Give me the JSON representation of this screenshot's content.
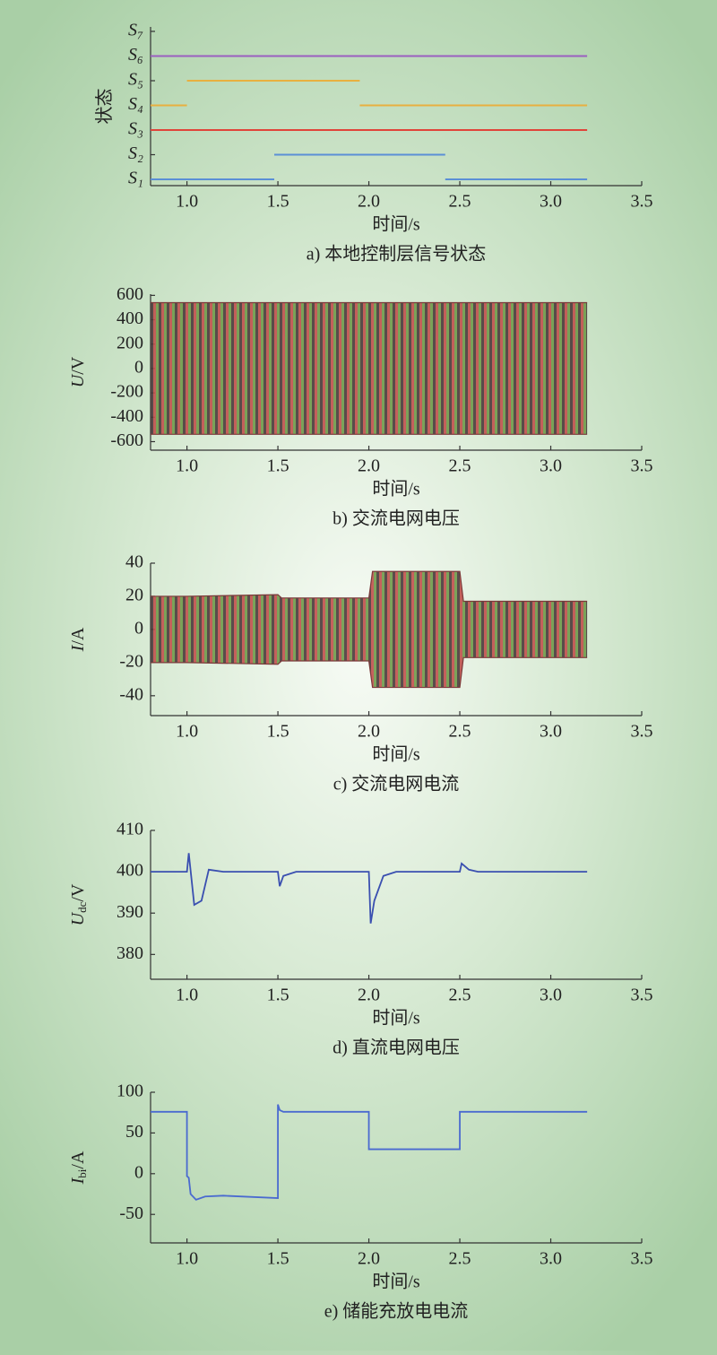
{
  "chart_data": [
    {
      "type": "state",
      "categories": [
        "S₁",
        "S₂",
        "S₃",
        "S₄",
        "S₅",
        "S₆",
        "S₇"
      ],
      "series": [
        {
          "color": "#5b8fd6",
          "intervals": [
            [
              0.8,
              1.48
            ],
            [
              2.42,
              3.2
            ]
          ]
        },
        {
          "color": "#5b8fd6",
          "intervals": [
            [
              1.48,
              2.42
            ]
          ]
        },
        {
          "color": "#e0443a",
          "intervals": [
            [
              0.8,
              3.2
            ]
          ]
        },
        {
          "color": "#e8b040",
          "intervals": [
            [
              0.8,
              1.0
            ],
            [
              1.95,
              3.2
            ]
          ]
        },
        {
          "color": "#e8b040",
          "intervals": [
            [
              1.0,
              1.95
            ]
          ]
        },
        {
          "color": "#9b5fc0",
          "intervals": [
            [
              0.8,
              3.2
            ]
          ]
        },
        {
          "color": "#9b5fc0",
          "intervals": []
        }
      ],
      "ylabel": [
        "状态"
      ],
      "xlabel": "时间/s",
      "caption": "a) 本地控制层信号状态",
      "xlim": [
        0.8,
        3.5
      ],
      "xticks": [
        {
          "value": 1,
          "label": "1.0"
        },
        {
          "value": 1.5,
          "label": "1.5"
        },
        {
          "value": 2,
          "label": "2.0"
        },
        {
          "value": 2.5,
          "label": "2.5"
        },
        {
          "value": 3,
          "label": "3.0"
        },
        {
          "value": 3.5,
          "label": "3.5"
        }
      ]
    },
    {
      "type": "band",
      "x": [
        0.8,
        3.2
      ],
      "upper": [
        540,
        540
      ],
      "lower": [
        -540,
        -540
      ],
      "ylabel": [
        "U",
        "/V"
      ],
      "xlabel": "时间/s",
      "caption": "b) 交流电网电压",
      "xlim": [
        0.8,
        3.5
      ],
      "ylim": [
        -670,
        610
      ],
      "yticks": [
        600,
        400,
        200,
        0,
        -200,
        -400,
        -600
      ],
      "xticks": [
        {
          "value": 1,
          "label": "1.0"
        },
        {
          "value": 1.5,
          "label": "1.5"
        },
        {
          "value": 2,
          "label": "2.0"
        },
        {
          "value": 2.5,
          "label": "2.5"
        },
        {
          "value": 3,
          "label": "3.0"
        },
        {
          "value": 3.5,
          "label": "3.5"
        }
      ]
    },
    {
      "type": "band",
      "x": [
        0.8,
        1.0,
        1.5,
        1.52,
        2.0,
        2.02,
        2.5,
        2.52,
        3.2
      ],
      "upper": [
        20,
        20,
        21,
        19,
        19,
        35,
        35,
        17,
        17
      ],
      "lower": [
        -20,
        -20,
        -21,
        -19,
        -19,
        -35,
        -35,
        -17,
        -17
      ],
      "ylabel": [
        "I",
        "/A"
      ],
      "xlabel": "时间/s",
      "caption": "c) 交流电网电流",
      "xlim": [
        0.8,
        3.5
      ],
      "ylim": [
        -52,
        40
      ],
      "yticks": [
        40,
        20,
        0,
        -20,
        -40
      ],
      "xticks": [
        {
          "value": 1,
          "label": "1.0"
        },
        {
          "value": 1.5,
          "label": "1.5"
        },
        {
          "value": 2,
          "label": "2.0"
        },
        {
          "value": 2.5,
          "label": "2.5"
        },
        {
          "value": 3,
          "label": "3.0"
        },
        {
          "value": 3.5,
          "label": "3.5"
        }
      ]
    },
    {
      "type": "line",
      "color": "#3a4fb0",
      "x": [
        0.8,
        1.0,
        1.01,
        1.04,
        1.08,
        1.12,
        1.2,
        1.5,
        1.51,
        1.53,
        1.6,
        2.0,
        2.01,
        2.03,
        2.08,
        2.15,
        2.5,
        2.51,
        2.55,
        2.6,
        3.2
      ],
      "values": [
        400,
        400,
        404.5,
        392,
        393,
        400.5,
        400,
        400,
        396.5,
        399,
        400,
        400,
        387.5,
        393,
        399,
        400,
        400,
        402,
        400.5,
        400,
        400
      ],
      "ylabel": [
        "U",
        "dc",
        "/V"
      ],
      "xlabel": "时间/s",
      "caption": "d) 直流电网电压",
      "xlim": [
        0.8,
        3.5
      ],
      "ylim": [
        374,
        410
      ],
      "yticks": [
        410,
        400,
        390,
        380
      ],
      "xticks": [
        {
          "value": 1,
          "label": "1.0"
        },
        {
          "value": 1.5,
          "label": "1.5"
        },
        {
          "value": 2,
          "label": "2.0"
        },
        {
          "value": 2.5,
          "label": "2.5"
        },
        {
          "value": 3,
          "label": "3.0"
        },
        {
          "value": 3.5,
          "label": "3.5"
        }
      ]
    },
    {
      "type": "line",
      "color": "#4a6ad0",
      "x": [
        0.8,
        1.0,
        1.0,
        1.01,
        1.02,
        1.05,
        1.1,
        1.2,
        1.5,
        1.5,
        1.51,
        1.53,
        2.0,
        2.0,
        2.5,
        2.5,
        3.2
      ],
      "values": [
        76,
        76,
        -3,
        -5,
        -25,
        -32,
        -28,
        -27,
        -30,
        85,
        78,
        76,
        76,
        30,
        30,
        76,
        76
      ],
      "ylabel": [
        "I",
        "bi",
        "/A"
      ],
      "xlabel": "时间/s",
      "caption": "e) 储能充放电电流",
      "xlim": [
        0.8,
        3.5
      ],
      "ylim": [
        -85,
        100
      ],
      "yticks": [
        100,
        50,
        0,
        -50
      ],
      "xticks": [
        {
          "value": 1,
          "label": "1.0"
        },
        {
          "value": 1.5,
          "label": "1.5"
        },
        {
          "value": 2,
          "label": "2.0"
        },
        {
          "value": 2.5,
          "label": "2.5"
        },
        {
          "value": 3,
          "label": "3.0"
        },
        {
          "value": 3.5,
          "label": "3.5"
        }
      ]
    }
  ]
}
